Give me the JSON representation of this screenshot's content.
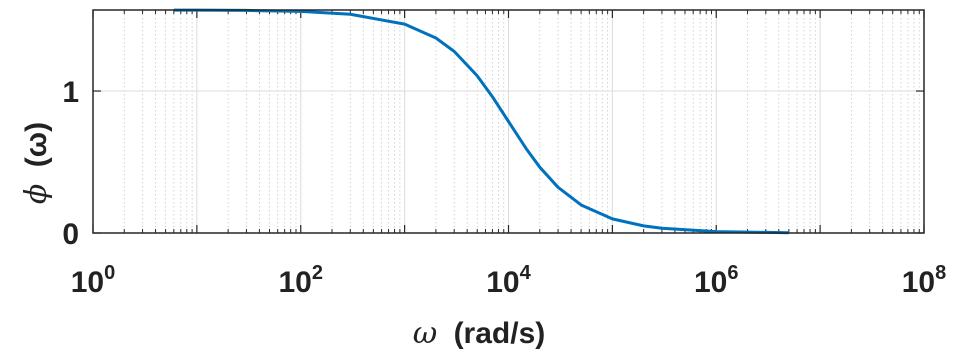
{
  "chart_data": {
    "type": "line",
    "title": "",
    "xlabel": "(rad/s)",
    "xlabel_symbol": "ω",
    "ylabel": "(ω)",
    "ylabel_symbol": "ϕ",
    "x_scale": "log",
    "xlim": [
      1,
      100000000
    ],
    "ylim": [
      0,
      1.5708
    ],
    "grid": true,
    "x_ticks": [
      {
        "base": "10",
        "exp": "0"
      },
      {
        "base": "10",
        "exp": "2"
      },
      {
        "base": "10",
        "exp": "4"
      },
      {
        "base": "10",
        "exp": "6"
      },
      {
        "base": "10",
        "exp": "8"
      }
    ],
    "x_tick_values": [
      1,
      100,
      10000,
      1000000,
      100000000
    ],
    "y_ticks": [
      "0",
      "1"
    ],
    "y_tick_values": [
      0,
      1
    ],
    "line_color": "#0072BD",
    "series": [
      {
        "x": [
          6,
          10,
          30,
          100,
          300,
          1000,
          2000,
          3000,
          5000,
          7000,
          10000,
          15000,
          20000,
          30000,
          50000,
          100000,
          200000,
          300000,
          1000000,
          5000000
        ],
        "y": [
          1.5698,
          1.5698,
          1.5678,
          1.5608,
          1.5408,
          1.4711,
          1.3734,
          1.2793,
          1.1071,
          0.9601,
          0.7854,
          0.588,
          0.4636,
          0.3218,
          0.1974,
          0.0997,
          0.05,
          0.0333,
          0.01,
          0.002
        ]
      }
    ]
  }
}
